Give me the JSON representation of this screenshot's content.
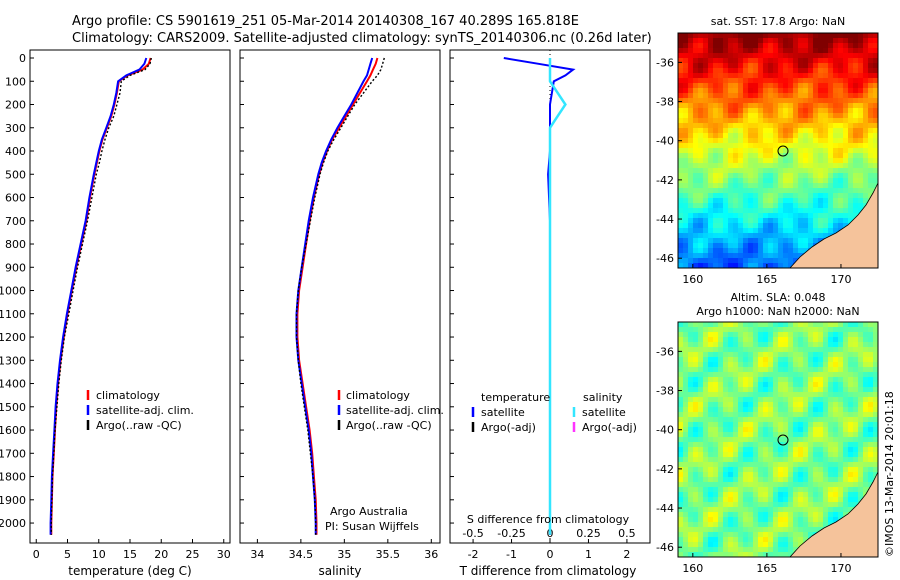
{
  "header": {
    "line1": "Argo profile: CS 5901619_251 05-Mar-2014 20140308_167 40.289S 165.818E",
    "line2": "Climatology: CARS2009. Satellite-adjusted climatology: synTS_20140306.nc (0.26d later)"
  },
  "colors": {
    "climatology": "#ff0000",
    "satellite": "#0000ff",
    "argo": "#000000",
    "salinity_satellite": "#33e6ff",
    "salinity_argo": "#ff33ff"
  },
  "chart_data": [
    {
      "type": "line",
      "id": "temperature",
      "xlabel": "temperature (deg C)",
      "xlim": [
        -1,
        31
      ],
      "xticks": [
        "0",
        "5",
        "10",
        "15",
        "20",
        "25",
        "30"
      ],
      "ylim": [
        2060,
        0
      ],
      "yticks": [
        "0",
        "100",
        "200",
        "300",
        "400",
        "500",
        "600",
        "700",
        "800",
        "900",
        "1000",
        "1100",
        "1200",
        "1300",
        "1400",
        "1500",
        "1600",
        "1700",
        "1800",
        "1900",
        "2000"
      ],
      "legend": [
        "climatology",
        "satellite-adj. clim.",
        "Argo(..raw -QC)"
      ],
      "depth": [
        0,
        25,
        50,
        75,
        100,
        150,
        200,
        250,
        300,
        350,
        400,
        450,
        500,
        600,
        700,
        800,
        900,
        1000,
        1100,
        1200,
        1300,
        1400,
        1500,
        1600,
        1700,
        1800,
        1900,
        2000,
        2050
      ],
      "series": [
        {
          "name": "climatology",
          "values": [
            18.3,
            18.0,
            17.0,
            14.6,
            13.2,
            12.9,
            12.5,
            12.0,
            11.3,
            10.6,
            10.1,
            9.7,
            9.3,
            8.6,
            8.0,
            7.2,
            6.4,
            5.7,
            5.0,
            4.4,
            3.9,
            3.5,
            3.2,
            3.0,
            2.8,
            2.6,
            2.5,
            2.4,
            2.4
          ]
        },
        {
          "name": "satellite-adj. clim.",
          "values": [
            17.6,
            17.3,
            16.5,
            14.4,
            13.1,
            12.8,
            12.4,
            11.9,
            11.2,
            10.5,
            10.0,
            9.6,
            9.2,
            8.5,
            7.9,
            7.1,
            6.3,
            5.6,
            4.9,
            4.3,
            3.8,
            3.4,
            3.1,
            2.9,
            2.7,
            2.5,
            2.4,
            2.3,
            2.3
          ]
        },
        {
          "name": "Argo(..raw -QC)",
          "values": [
            18.4,
            18.2,
            17.4,
            15.0,
            13.6,
            13.4,
            12.9,
            12.4,
            11.6,
            11.0,
            10.5,
            10.1,
            9.6,
            8.9,
            8.2,
            7.4,
            6.6,
            5.9,
            5.2,
            4.5,
            4.0,
            3.6,
            3.3,
            3.0,
            2.8,
            2.6,
            2.5,
            2.4,
            2.4
          ]
        }
      ]
    },
    {
      "type": "line",
      "id": "salinity",
      "xlabel": "salinity",
      "xlim": [
        33.8,
        36.1
      ],
      "xticks": [
        "34",
        "34.5",
        "35",
        "35.5",
        "36"
      ],
      "ylim": [
        2060,
        0
      ],
      "legend": [
        "climatology",
        "satellite-adj. clim.",
        "Argo(..raw -QC)"
      ],
      "depth": [
        0,
        25,
        50,
        75,
        100,
        150,
        200,
        250,
        300,
        350,
        400,
        450,
        500,
        600,
        700,
        800,
        900,
        1000,
        1100,
        1200,
        1300,
        1400,
        1500,
        1600,
        1700,
        1800,
        1900,
        2000,
        2050
      ],
      "series": [
        {
          "name": "climatology",
          "values": [
            35.38,
            35.36,
            35.33,
            35.3,
            35.26,
            35.18,
            35.1,
            35.02,
            34.94,
            34.86,
            34.8,
            34.75,
            34.71,
            34.65,
            34.6,
            34.56,
            34.52,
            34.48,
            34.46,
            34.46,
            34.48,
            34.52,
            34.56,
            34.6,
            34.63,
            34.65,
            34.67,
            34.68,
            34.68
          ]
        },
        {
          "name": "satellite-adj. clim.",
          "values": [
            35.32,
            35.3,
            35.28,
            35.26,
            35.22,
            35.15,
            35.08,
            35.0,
            34.92,
            34.85,
            34.79,
            34.74,
            34.7,
            34.64,
            34.59,
            34.55,
            34.51,
            34.47,
            34.45,
            34.45,
            34.47,
            34.51,
            34.55,
            34.59,
            34.62,
            34.64,
            34.66,
            34.67,
            34.67
          ]
        },
        {
          "name": "Argo(..raw -QC)",
          "values": [
            35.46,
            35.44,
            35.42,
            35.38,
            35.32,
            35.22,
            35.12,
            35.04,
            34.96,
            34.88,
            34.81,
            34.76,
            34.72,
            34.66,
            34.61,
            34.56,
            34.51,
            34.47,
            34.45,
            34.45,
            34.47,
            34.5,
            34.54,
            34.58,
            34.61,
            34.64,
            34.66,
            34.67,
            34.67
          ]
        }
      ],
      "annotation": [
        "Argo Australia",
        "PI: Susan Wijffels"
      ]
    },
    {
      "type": "line",
      "id": "difference",
      "xlabel_top": "S difference from climatology",
      "xlabel": "T difference from climatology",
      "xlim": [
        -2.6,
        2.6
      ],
      "xticks": [
        "-2",
        "-1",
        "0",
        "1",
        "2"
      ],
      "sticks": [
        "-0.5",
        "-0.25",
        "0",
        "0.25",
        "0.5"
      ],
      "ylim": [
        2060,
        0
      ],
      "legend_headers": [
        "temperature",
        "salinity"
      ],
      "legend": [
        "satellite",
        "Argo(-adj)",
        "satellite",
        "Argo(-adj)"
      ],
      "depth": [
        0,
        25,
        50,
        75,
        100,
        150,
        200,
        250,
        300,
        400,
        500,
        700,
        1000,
        1500,
        2000,
        2050
      ],
      "series": [
        {
          "name": "temperature satellite",
          "values": [
            -1.2,
            -0.3,
            0.6,
            0.4,
            0.1,
            0.05,
            0.0,
            0.0,
            0.0,
            0.0,
            -0.05,
            0.0,
            0.0,
            0.0,
            0.0,
            0.0
          ]
        },
        {
          "name": "salinity satellite",
          "values": [
            0.0,
            0.0,
            0.0,
            0.0,
            0.0,
            0.05,
            0.1,
            0.05,
            0.0,
            0.0,
            0.0,
            0.0,
            0.0,
            0.0,
            0.0,
            0.0
          ]
        }
      ]
    },
    {
      "type": "heatmap",
      "id": "sst_map",
      "title": "sat. SST: 17.8  Argo: NaN",
      "xticks": [
        "160",
        "165",
        "170"
      ],
      "yticks": [
        "-36",
        "-38",
        "-40",
        "-42",
        "-44",
        "-46"
      ],
      "xlim": [
        159,
        172.5
      ],
      "ylim": [
        -46.5,
        -34.5
      ],
      "marker": {
        "lon": 165.818,
        "lat": -40.289
      }
    },
    {
      "type": "heatmap",
      "id": "sla_map",
      "title": "Altim. SLA: 0.048",
      "title2": "Argo h1000: NaN  h2000: NaN",
      "xticks": [
        "160",
        "165",
        "170"
      ],
      "yticks": [
        "-36",
        "-38",
        "-40",
        "-42",
        "-44",
        "-46"
      ],
      "xlim": [
        159,
        172.5
      ],
      "ylim": [
        -46.5,
        -34.5
      ],
      "marker": {
        "lon": 165.818,
        "lat": -40.289
      },
      "side_label": "©IMOS 13-Mar-2014 20:01:18"
    }
  ]
}
